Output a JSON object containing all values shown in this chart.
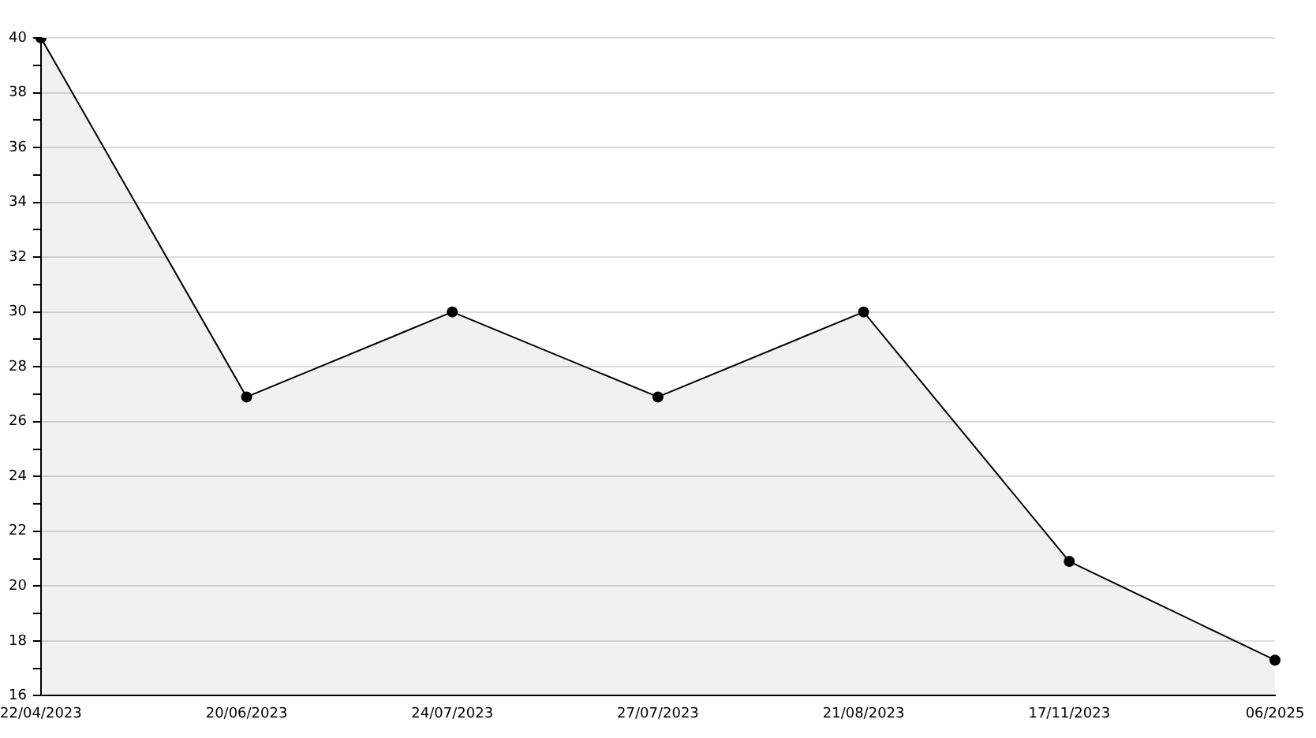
{
  "chart_data": {
    "type": "area",
    "categories": [
      "22/04/2023",
      "20/06/2023",
      "24/07/2023",
      "27/07/2023",
      "21/08/2023",
      "17/11/2023",
      "06/2025"
    ],
    "series": [
      {
        "color": "#000000",
        "values": [
          40,
          26.9,
          30,
          26.9,
          30,
          20.9,
          17.3
        ]
      }
    ],
    "ylim": [
      16,
      40
    ],
    "yticks": [
      16,
      {
        "value": 17,
        "label": null
      },
      18,
      {
        "value": 19,
        "label": null
      },
      20,
      {
        "value": 21,
        "label": null
      },
      22,
      {
        "value": 23,
        "label": null
      },
      24,
      {
        "value": 25,
        "label": null
      },
      26,
      {
        "value": 27,
        "label": null
      },
      28,
      {
        "value": 29,
        "label": null
      },
      30,
      {
        "value": 31,
        "label": null
      },
      32,
      {
        "value": 33,
        "label": null
      },
      34,
      {
        "value": 35,
        "label": null
      },
      36,
      {
        "value": 37,
        "label": null
      },
      38,
      {
        "value": 39,
        "label": null
      },
      40
    ],
    "grid": "y",
    "legend": false,
    "marker": "circle",
    "line_style": "solid"
  }
}
